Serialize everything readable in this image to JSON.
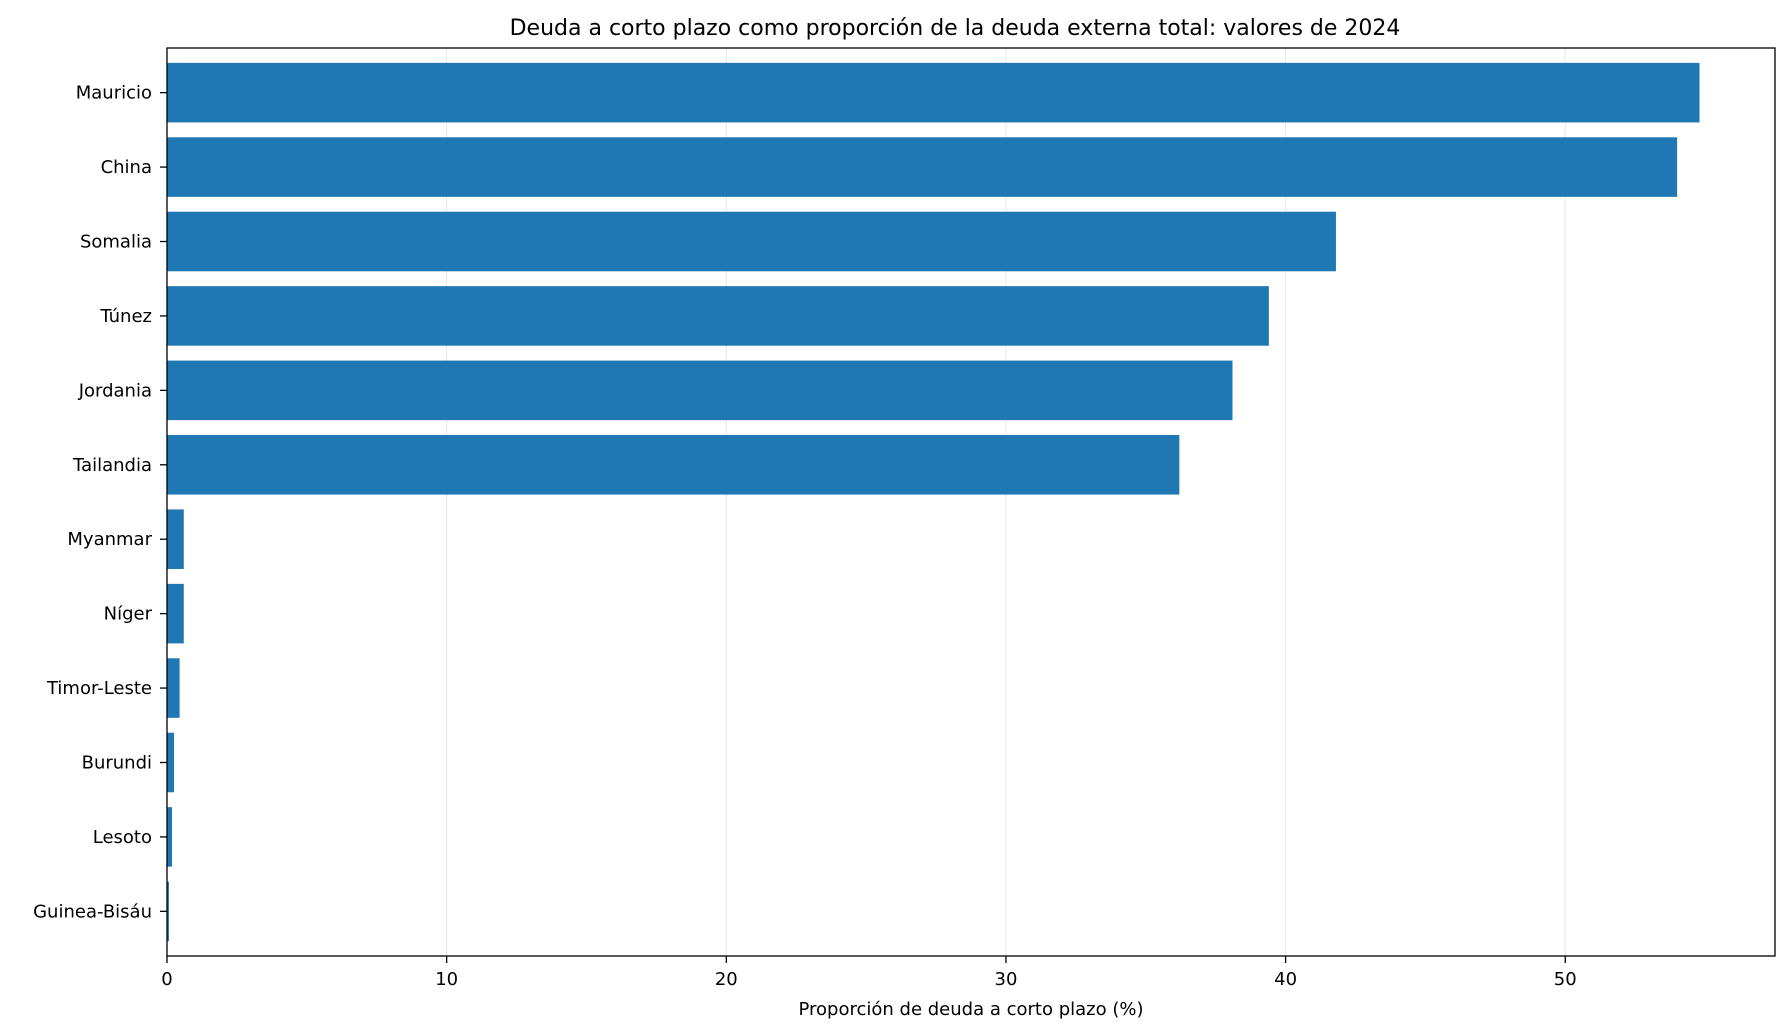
{
  "chart_data": {
    "type": "bar",
    "orientation": "horizontal",
    "title": "Deuda a corto plazo como proporción de la deuda externa total: valores de 2024",
    "xlabel": "Proporción de deuda a corto plazo (%)",
    "ylabel": "",
    "xlim": [
      0,
      57.5
    ],
    "xticks": [
      0,
      10,
      20,
      30,
      40,
      50
    ],
    "grid": "vertical",
    "legend": "none",
    "bar_color": "#1f77b4",
    "categories": [
      "Mauricio",
      "China",
      "Somalia",
      "Túnez",
      "Jordania",
      "Tailandia",
      "Myanmar",
      "Níger",
      "Timor-Leste",
      "Burundi",
      "Lesoto",
      "Guinea-Bisáu"
    ],
    "values": [
      54.8,
      54.0,
      41.8,
      39.4,
      38.1,
      36.2,
      0.6,
      0.6,
      0.45,
      0.25,
      0.18,
      0.07
    ]
  }
}
